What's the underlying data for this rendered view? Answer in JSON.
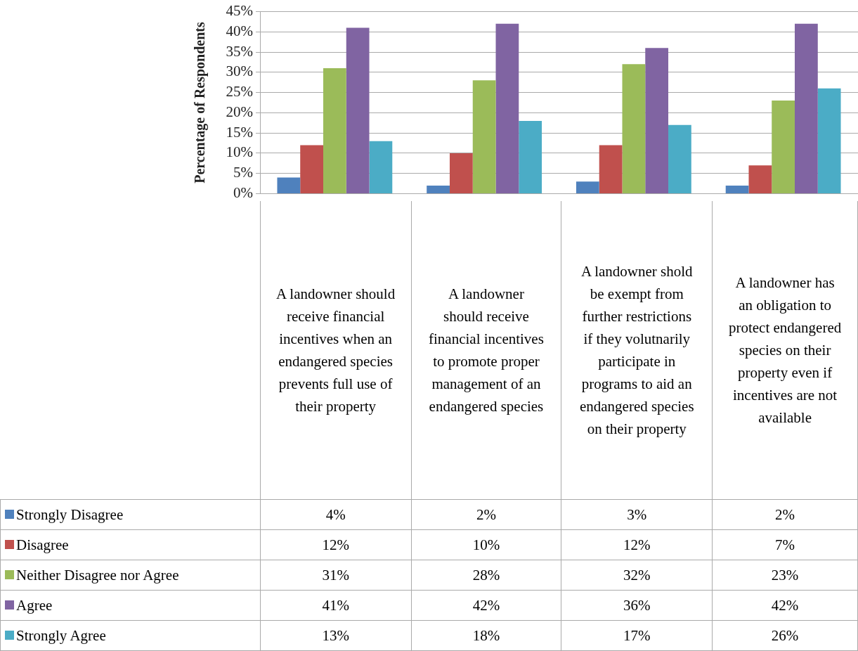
{
  "chart_data": {
    "type": "bar",
    "ylabel": "Percentage of Respondents",
    "categories": [
      "A landowner should receive financial incentives when an endangered species prevents full use of their property",
      "A landowner should receive financial incentives to promote proper management of an endangered species",
      "A landowner shold be exempt from further restrictions if they volutnarily participate in programs to aid an endangered species on their property",
      "A landowner has an obligation to protect endangered species on their property even if incentives are not available"
    ],
    "series": [
      {
        "name": "Strongly Disagree",
        "color": "#4f81bd",
        "values": [
          4,
          2,
          3,
          2
        ],
        "value_labels": [
          "4%",
          "2%",
          "3%",
          "2%"
        ]
      },
      {
        "name": "Disagree",
        "color": "#c0504d",
        "values": [
          12,
          10,
          12,
          7
        ],
        "value_labels": [
          "12%",
          "10%",
          "12%",
          "7%"
        ]
      },
      {
        "name": "Neither Disagree nor Agree",
        "color": "#9bbb59",
        "values": [
          31,
          28,
          32,
          23
        ],
        "value_labels": [
          "31%",
          "28%",
          "32%",
          "23%"
        ]
      },
      {
        "name": "Agree",
        "color": "#8064a2",
        "values": [
          41,
          42,
          36,
          42
        ],
        "value_labels": [
          "41%",
          "42%",
          "36%",
          "42%"
        ]
      },
      {
        "name": "Strongly Agree",
        "color": "#4bacc6",
        "values": [
          13,
          18,
          17,
          26
        ],
        "value_labels": [
          "13%",
          "18%",
          "17%",
          "26%"
        ]
      }
    ],
    "ylim": [
      0,
      45
    ],
    "yticks": [
      {
        "value": 0,
        "label": "0%"
      },
      {
        "value": 5,
        "label": "5%"
      },
      {
        "value": 10,
        "label": "10%"
      },
      {
        "value": 15,
        "label": "15%"
      },
      {
        "value": 20,
        "label": "20%"
      },
      {
        "value": 25,
        "label": "25%"
      },
      {
        "value": 30,
        "label": "30%"
      },
      {
        "value": 35,
        "label": "35%"
      },
      {
        "value": 40,
        "label": "40%"
      },
      {
        "value": 45,
        "label": "45%"
      }
    ],
    "grid": "y",
    "legend": "bottom left"
  }
}
